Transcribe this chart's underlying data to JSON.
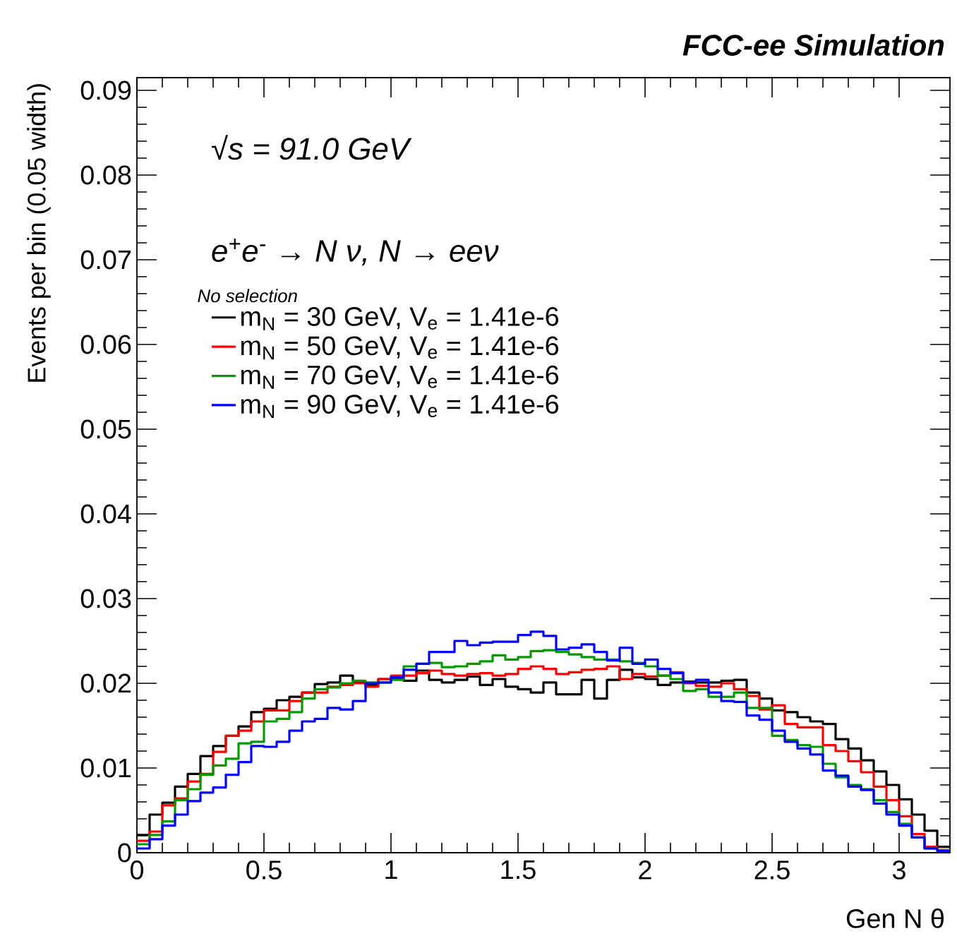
{
  "chart_data": {
    "type": "histogram",
    "title": "FCC-ee Simulation",
    "xlabel": "Gen N θ",
    "ylabel": "Events per bin (0.05 width)",
    "annotations": [
      "√s = 91.0 GeV",
      "e$^{+}$e$^{-}$ → N ν, N → eeν"
    ],
    "legend_title": "No selection",
    "legend": "top left",
    "bins": [
      0,
      0.05,
      0.1,
      0.15,
      0.2,
      0.25,
      0.3,
      0.35,
      0.4,
      0.45,
      0.5,
      0.55,
      0.6,
      0.65,
      0.7,
      0.75,
      0.8,
      0.85,
      0.9,
      0.95,
      1.0,
      1.05,
      1.1,
      1.15,
      1.2,
      1.25,
      1.3,
      1.35,
      1.4,
      1.45,
      1.5,
      1.55,
      1.6,
      1.65,
      1.7,
      1.75,
      1.8,
      1.85,
      1.9,
      1.95,
      2.0,
      2.05,
      2.1,
      2.15,
      2.2,
      2.25,
      2.3,
      2.35,
      2.4,
      2.45,
      2.5,
      2.55,
      2.6,
      2.65,
      2.7,
      2.75,
      2.8,
      2.85,
      2.9,
      2.95,
      3.0,
      3.05,
      3.1,
      3.15,
      3.2
    ],
    "series": [
      {
        "name": "m$_{N}$ = 30 GeV, V$_{e}$ = 1.41e-6",
        "color": "#000000",
        "values": [
          0.0021,
          0.0045,
          0.0059,
          0.0078,
          0.0093,
          0.0114,
          0.0126,
          0.0138,
          0.0149,
          0.0166,
          0.017,
          0.018,
          0.0184,
          0.0189,
          0.0199,
          0.0201,
          0.0209,
          0.0201,
          0.0198,
          0.0205,
          0.0205,
          0.0203,
          0.0215,
          0.0204,
          0.0201,
          0.0204,
          0.0208,
          0.0198,
          0.0205,
          0.0196,
          0.0193,
          0.0189,
          0.0201,
          0.0187,
          0.0187,
          0.0204,
          0.0182,
          0.0204,
          0.0216,
          0.0207,
          0.0205,
          0.0198,
          0.0201,
          0.0202,
          0.0201,
          0.0201,
          0.0203,
          0.0204,
          0.0189,
          0.0182,
          0.0168,
          0.0166,
          0.016,
          0.0155,
          0.0152,
          0.0134,
          0.0123,
          0.0109,
          0.0096,
          0.008,
          0.0063,
          0.0045,
          0.0026,
          0.0007
        ]
      },
      {
        "name": "m$_{N}$ = 50 GeV, V$_{e}$ = 1.41e-6",
        "color": "#ff0000",
        "values": [
          0.0014,
          0.0025,
          0.0056,
          0.0064,
          0.0084,
          0.0093,
          0.0119,
          0.0138,
          0.0144,
          0.0155,
          0.0168,
          0.0168,
          0.0179,
          0.0189,
          0.0189,
          0.0196,
          0.0198,
          0.02,
          0.0196,
          0.0205,
          0.0209,
          0.0209,
          0.0212,
          0.0215,
          0.0211,
          0.0209,
          0.0211,
          0.0212,
          0.0209,
          0.0211,
          0.0217,
          0.022,
          0.0217,
          0.0211,
          0.0213,
          0.0216,
          0.0217,
          0.022,
          0.0205,
          0.0211,
          0.0208,
          0.0209,
          0.0213,
          0.02,
          0.0197,
          0.0196,
          0.02,
          0.0193,
          0.0185,
          0.0169,
          0.0174,
          0.0152,
          0.0148,
          0.0148,
          0.0127,
          0.012,
          0.0108,
          0.0095,
          0.0078,
          0.0062,
          0.0043,
          0.0022,
          0.0007,
          0.0003
        ]
      },
      {
        "name": "m$_{N}$ = 70 GeV, V$_{e}$ = 1.41e-6",
        "color": "#009900",
        "values": [
          0.001,
          0.0021,
          0.0037,
          0.0062,
          0.0075,
          0.0092,
          0.0103,
          0.0111,
          0.0129,
          0.0131,
          0.0155,
          0.0158,
          0.0166,
          0.0182,
          0.0193,
          0.0195,
          0.02,
          0.0203,
          0.0201,
          0.0201,
          0.0204,
          0.022,
          0.0223,
          0.0224,
          0.0219,
          0.022,
          0.0223,
          0.0226,
          0.0233,
          0.0228,
          0.0231,
          0.0238,
          0.0239,
          0.0237,
          0.0234,
          0.0231,
          0.0228,
          0.0228,
          0.0226,
          0.0224,
          0.022,
          0.0209,
          0.0205,
          0.0191,
          0.0193,
          0.0184,
          0.0184,
          0.0189,
          0.0171,
          0.0171,
          0.0138,
          0.0133,
          0.0127,
          0.0125,
          0.0105,
          0.0089,
          0.008,
          0.0075,
          0.0062,
          0.0048,
          0.0034,
          0.0018,
          0.0005,
          0.0003
        ]
      },
      {
        "name": "m$_{N}$ = 90 GeV, V$_{e}$ = 1.41e-6",
        "color": "#0000ff",
        "values": [
          0.0005,
          0.0016,
          0.0032,
          0.0045,
          0.0061,
          0.0071,
          0.0077,
          0.0092,
          0.0107,
          0.0126,
          0.0125,
          0.0131,
          0.0144,
          0.0155,
          0.0158,
          0.0171,
          0.0169,
          0.0179,
          0.02,
          0.0201,
          0.0207,
          0.0216,
          0.0223,
          0.0237,
          0.0237,
          0.025,
          0.0245,
          0.0248,
          0.0249,
          0.0249,
          0.0257,
          0.0261,
          0.0256,
          0.024,
          0.0242,
          0.0246,
          0.0237,
          0.0227,
          0.0242,
          0.0223,
          0.0228,
          0.0217,
          0.0212,
          0.0201,
          0.0204,
          0.0189,
          0.0179,
          0.0178,
          0.0162,
          0.0157,
          0.0144,
          0.0131,
          0.0123,
          0.0116,
          0.0097,
          0.0091,
          0.0078,
          0.0074,
          0.0058,
          0.0045,
          0.0032,
          0.0018,
          0.0005,
          0.0002
        ]
      }
    ],
    "xlim": [
      0,
      3.2
    ],
    "ylim": [
      0,
      0.0915
    ],
    "xticks": [
      0,
      0.5,
      1,
      1.5,
      2,
      2.5,
      3
    ],
    "yticks": [
      0,
      0.01,
      0.02,
      0.03,
      0.04,
      0.05,
      0.06,
      0.07,
      0.08,
      0.09
    ]
  }
}
